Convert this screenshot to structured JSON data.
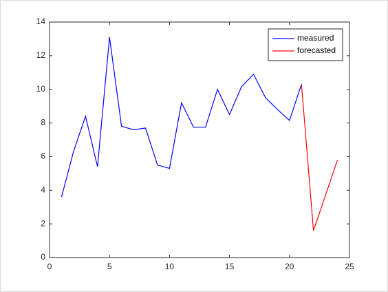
{
  "chart_data": {
    "type": "line",
    "series": [
      {
        "name": "measured",
        "color": "#0000ff",
        "x": [
          1,
          2,
          3,
          4,
          5,
          6,
          7,
          8,
          9,
          10,
          11,
          12,
          13,
          14,
          15,
          16,
          17,
          18,
          19,
          20,
          21
        ],
        "values": [
          3.6,
          6.3,
          8.4,
          5.4,
          13.1,
          7.8,
          7.6,
          7.7,
          5.5,
          5.3,
          9.2,
          7.75,
          7.75,
          10.0,
          8.5,
          10.15,
          10.9,
          9.5,
          8.8,
          8.15,
          10.3
        ]
      },
      {
        "name": "forecasted",
        "color": "#ff0000",
        "x": [
          21,
          22,
          23,
          24
        ],
        "values": [
          10.3,
          1.6,
          3.7,
          5.8
        ]
      }
    ],
    "xlim": [
      0,
      25
    ],
    "xticks": [
      0,
      5,
      10,
      15,
      20,
      25
    ],
    "ylim": [
      0,
      14
    ],
    "yticks": [
      0,
      2,
      4,
      6,
      8,
      10,
      12,
      14
    ],
    "legend": "northeast"
  }
}
